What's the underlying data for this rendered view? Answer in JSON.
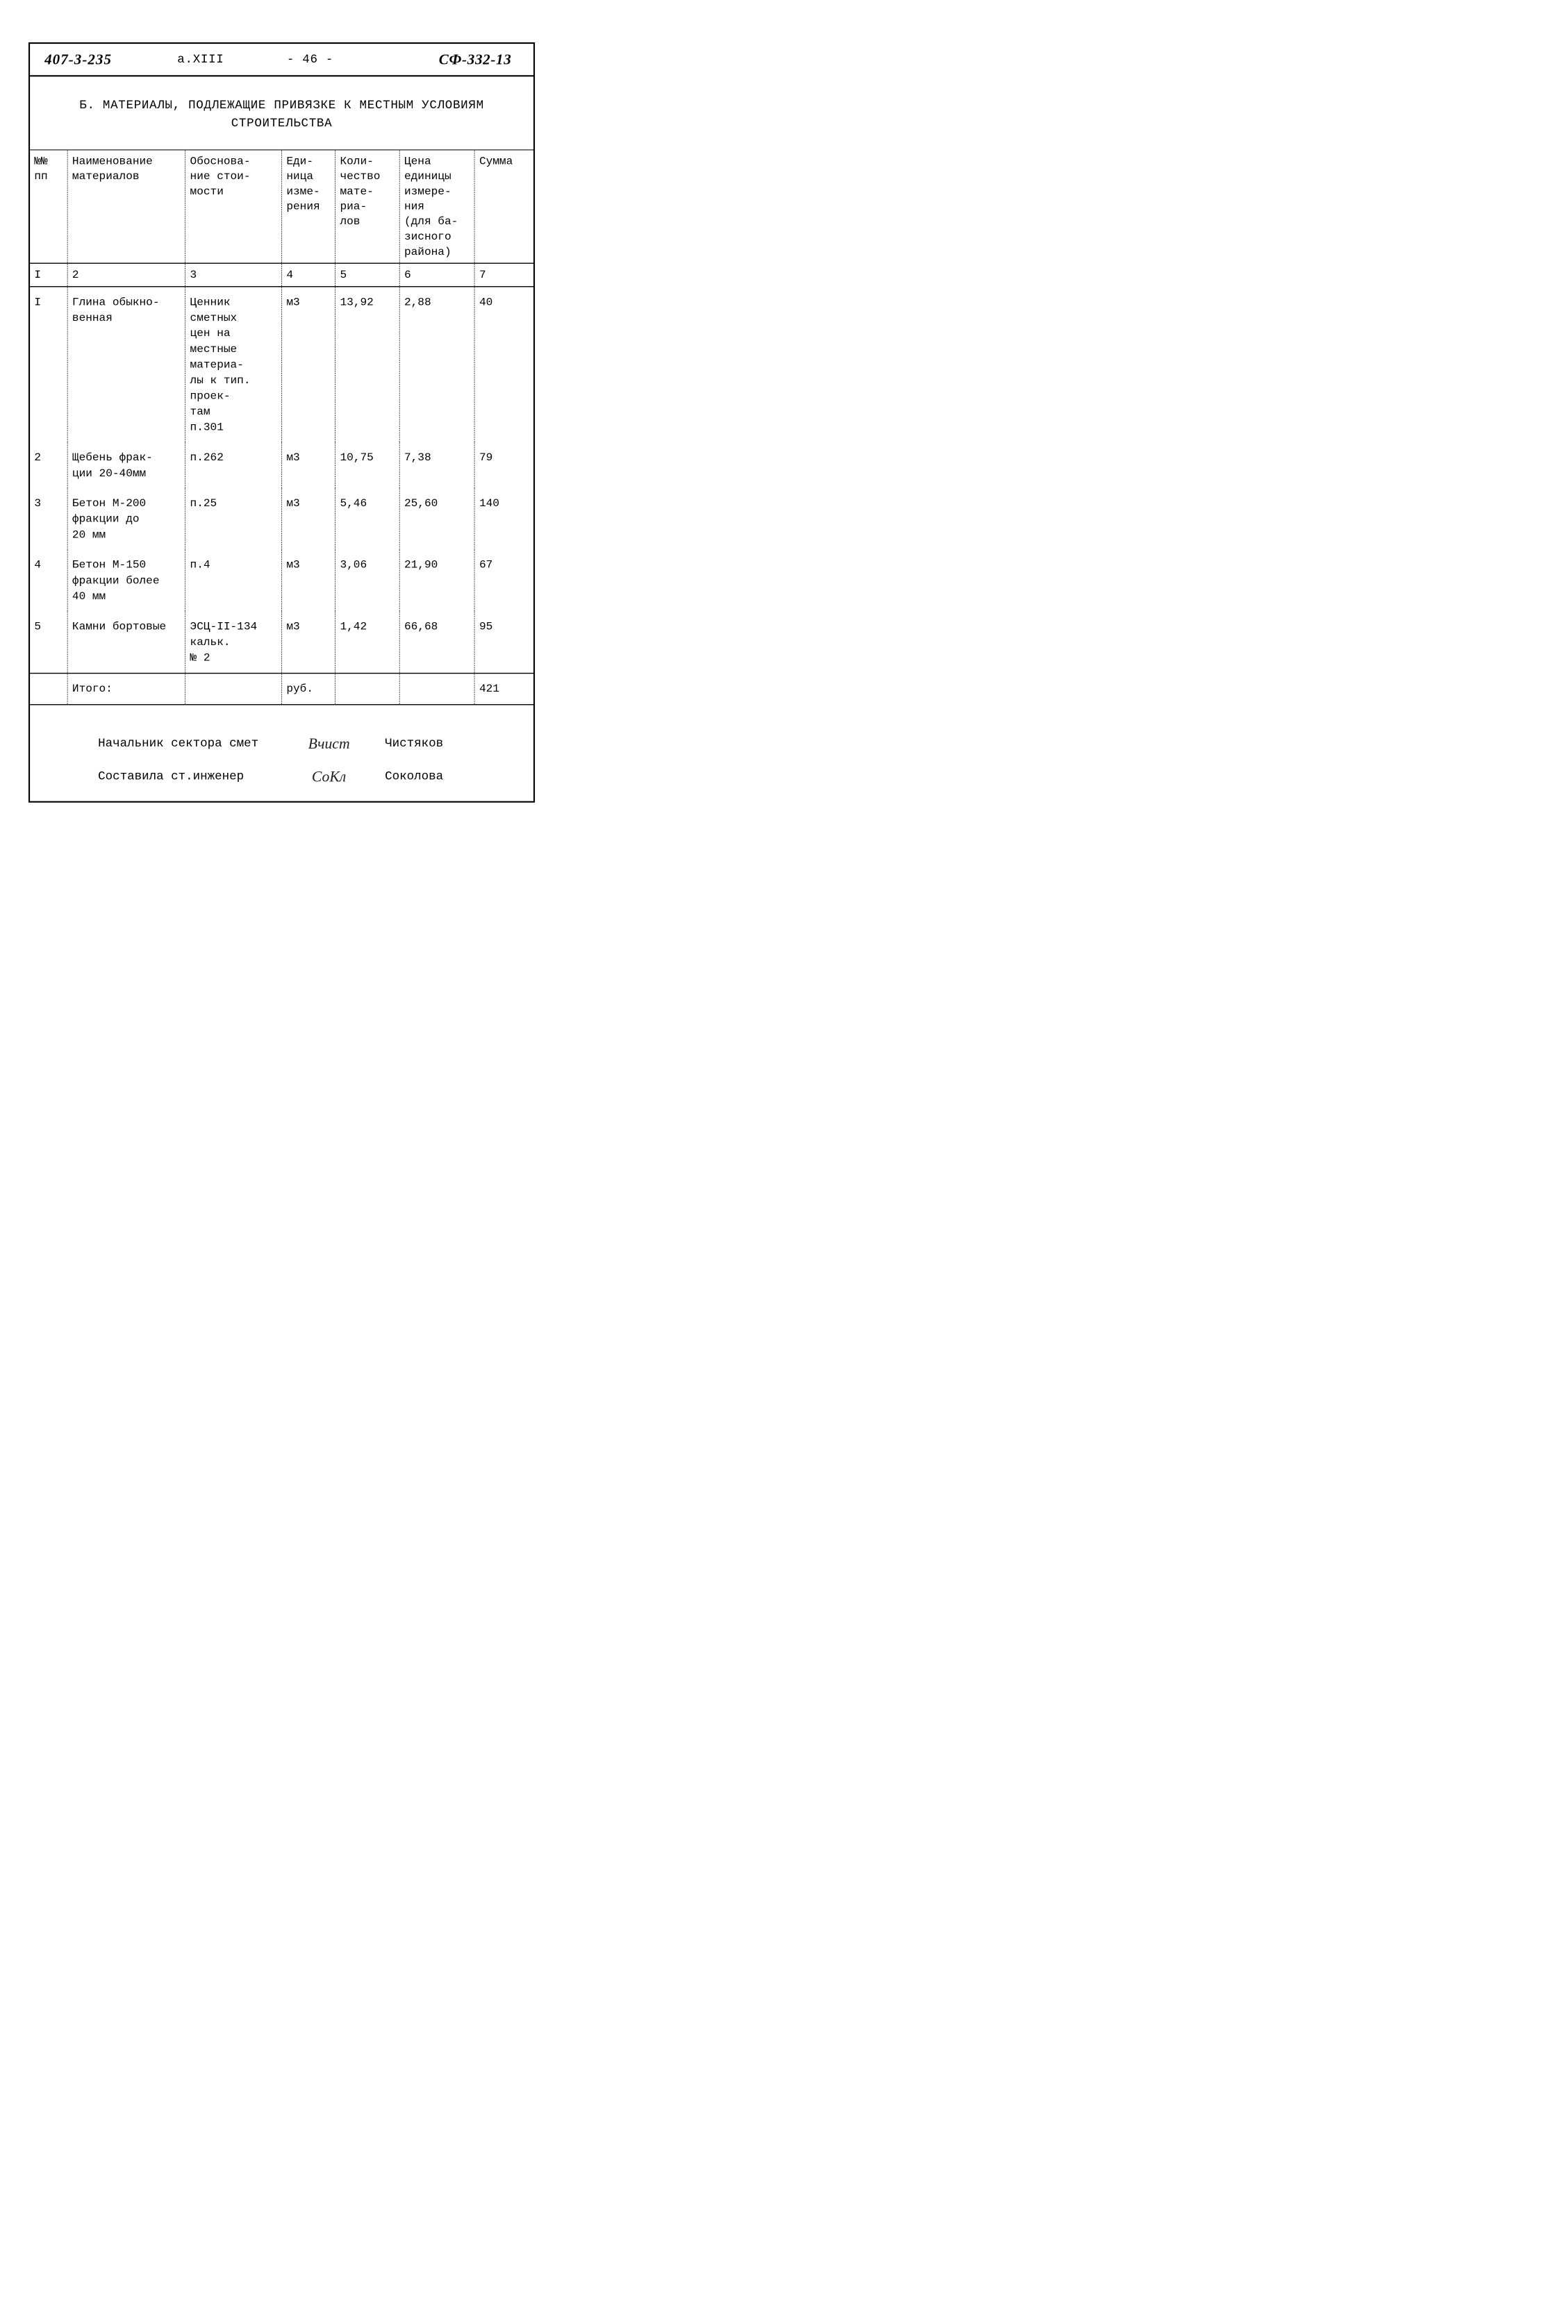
{
  "header": {
    "doc_number": "407-3-235",
    "album": "а.XIII",
    "page": "- 46 -",
    "code": "СФ-332-13"
  },
  "section_title_line1": "Б. МАТЕРИАЛЫ, ПОДЛЕЖАЩИЕ ПРИВЯЗКЕ К МЕСТНЫМ УСЛОВИЯМ",
  "section_title_line2": "СТРОИТЕЛЬСТВА",
  "table": {
    "type": "table",
    "border_color": "#000000",
    "dash_color": "#555555",
    "font_size_pt": 12,
    "columns": [
      {
        "key": "num",
        "header": "№№\nпп",
        "width_pct": 7,
        "align": "right"
      },
      {
        "key": "name",
        "header": "Наименование\nматериалов",
        "width_pct": 22,
        "align": "left"
      },
      {
        "key": "basis",
        "header": "Обоснова-\nние стои-\nмости",
        "width_pct": 18,
        "align": "left"
      },
      {
        "key": "unit",
        "header": "Еди-\nница\nизме-\nрения",
        "width_pct": 10,
        "align": "left"
      },
      {
        "key": "qty",
        "header": "Коли-\nчество\nмате-\nриа-\nлов",
        "width_pct": 12,
        "align": "left"
      },
      {
        "key": "price",
        "header": "Цена\nединицы\nизмере-\nния\n(для ба-\nзисного\nрайона)",
        "width_pct": 14,
        "align": "left"
      },
      {
        "key": "sum",
        "header": "Сумма",
        "width_pct": 11,
        "align": "left"
      }
    ],
    "col_numbers": [
      "I",
      "2",
      "3",
      "4",
      "5",
      "6",
      "7"
    ],
    "rows": [
      {
        "num": "I",
        "name": "Глина обыкно-\nвенная",
        "basis": "Ценник\nсметных\nцен на\nместные\nматериа-\nлы к тип.\nпроек-\nтам\nп.301",
        "unit": "м3",
        "qty": "13,92",
        "price": "2,88",
        "sum": "40"
      },
      {
        "num": "2",
        "name": "Щебень фрак-\nции 20-40мм",
        "basis": "п.262",
        "unit": "м3",
        "qty": "10,75",
        "price": "7,38",
        "sum": "79"
      },
      {
        "num": "3",
        "name": "Бетон М-200\nфракции до\n20 мм",
        "basis": "п.25",
        "unit": "м3",
        "qty": "5,46",
        "price": "25,60",
        "sum": "140"
      },
      {
        "num": "4",
        "name": "Бетон М-150\nфракции более\n40 мм",
        "basis": "п.4",
        "unit": "м3",
        "qty": "3,06",
        "price": "21,90",
        "sum": "67"
      },
      {
        "num": "5",
        "name": "Камни бортовые",
        "basis": "ЭСЦ-II-134\nкальк.\n№ 2",
        "unit": "м3",
        "qty": "1,42",
        "price": "66,68",
        "sum": "95"
      }
    ],
    "total": {
      "label": "Итого:",
      "unit": "руб.",
      "sum": "421"
    }
  },
  "signatures": {
    "role1": "Начальник сектора смет",
    "hand1": "Вчист",
    "name1": "Чистяков",
    "role2": "Составила ст.инженер",
    "hand2": "СоКл",
    "name2": "Соколова"
  },
  "colors": {
    "paper": "#ffffff",
    "ink": "#000000",
    "dash": "#555555"
  }
}
